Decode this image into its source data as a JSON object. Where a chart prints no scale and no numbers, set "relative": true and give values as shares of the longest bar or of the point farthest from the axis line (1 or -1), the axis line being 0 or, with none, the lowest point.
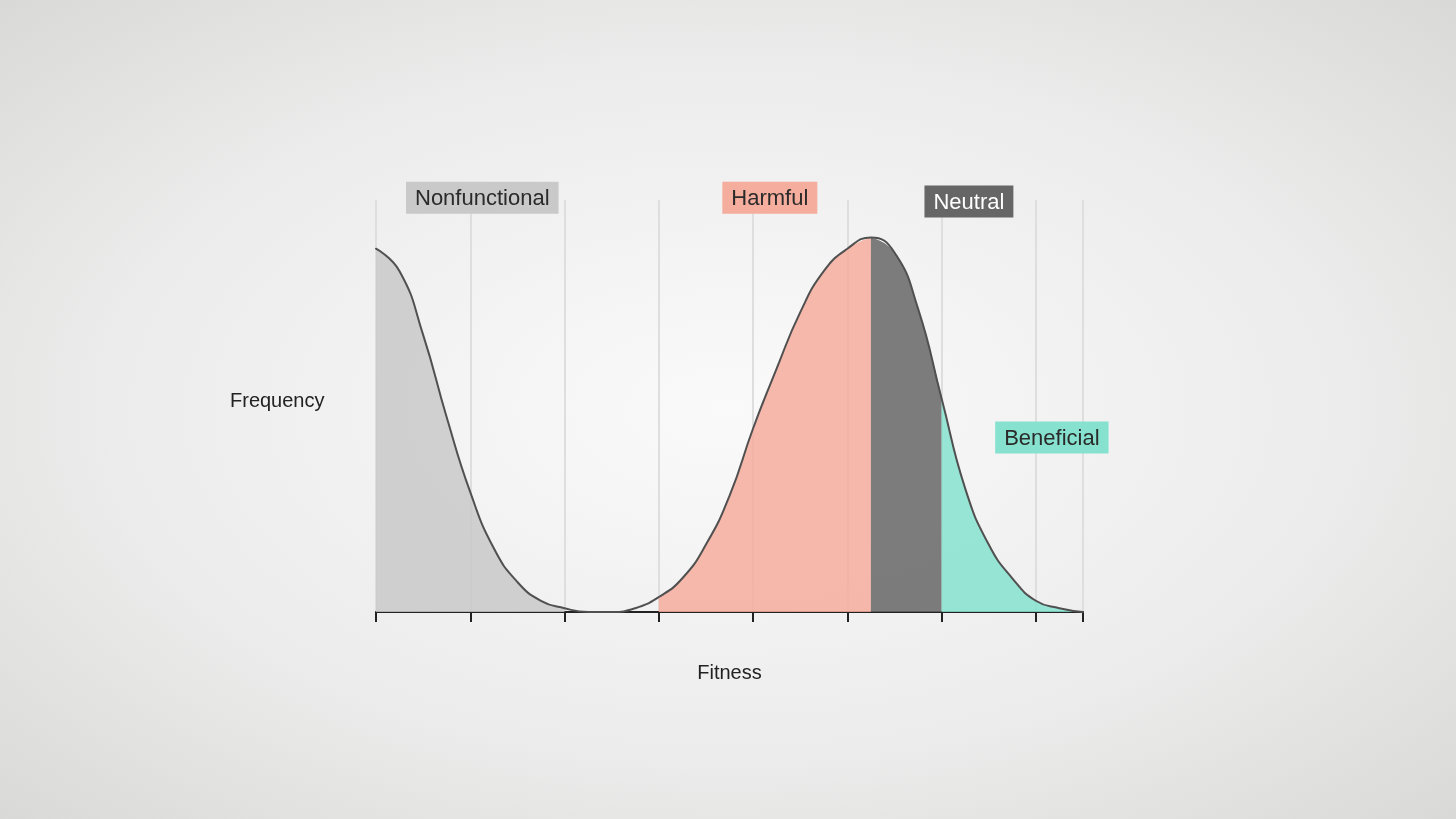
{
  "chart_data": {
    "type": "area",
    "relative": true,
    "xlabel": "Fitness",
    "ylabel": "Frequency",
    "grid": "x",
    "legend": false,
    "marker": "none",
    "line_style": "solid",
    "categories": [
      null,
      null,
      null,
      null,
      null,
      null,
      null,
      null,
      null,
      null,
      null,
      null,
      null,
      null,
      null,
      null,
      null,
      null,
      null,
      null,
      null,
      null,
      null,
      null,
      null,
      null,
      null,
      null,
      null,
      null,
      null
    ],
    "series": [
      {
        "name": "Nonfunctional",
        "color": "#c9c9c9",
        "values": [
          0.97,
          0.91,
          0.74,
          0.52,
          0.32,
          0.17,
          0.08,
          0.03,
          0.01,
          null,
          null,
          null,
          null,
          null,
          null,
          null,
          null,
          null,
          null,
          null,
          null,
          null,
          null,
          null,
          null,
          null,
          null,
          null,
          null,
          null,
          null
        ]
      },
      {
        "name": "Harmful",
        "color": "#f5ad9d",
        "values": [
          null,
          null,
          null,
          null,
          null,
          null,
          null,
          null,
          null,
          null,
          null,
          null,
          0.04,
          0.09,
          0.18,
          0.31,
          0.49,
          0.65,
          0.8,
          0.91,
          0.97,
          1,
          null,
          null,
          null,
          null,
          null,
          null,
          null,
          null,
          null
        ]
      },
      {
        "name": "Neutral",
        "color": "#666666",
        "values": [
          null,
          null,
          null,
          null,
          null,
          null,
          null,
          null,
          null,
          null,
          null,
          null,
          null,
          null,
          null,
          null,
          null,
          null,
          null,
          null,
          null,
          1,
          0.96,
          0.81,
          0.57,
          null,
          null,
          null,
          null,
          null,
          null
        ]
      },
      {
        "name": "Beneficial",
        "color": "#86e2cf",
        "values": [
          null,
          null,
          null,
          null,
          null,
          null,
          null,
          null,
          null,
          null,
          null,
          null,
          null,
          null,
          null,
          null,
          null,
          null,
          null,
          null,
          null,
          null,
          null,
          null,
          0.57,
          0.33,
          0.18,
          0.09,
          0.03,
          0.01,
          0
        ]
      },
      {
        "type": "line",
        "color": "#505050",
        "values": [
          0.97,
          0.91,
          0.74,
          0.52,
          0.32,
          0.17,
          0.08,
          0.03,
          0.01,
          0,
          0,
          0.01,
          0.04,
          0.09,
          0.18,
          0.31,
          0.49,
          0.65,
          0.8,
          0.91,
          0.97,
          1,
          0.96,
          0.81,
          0.57,
          0.33,
          0.18,
          0.09,
          0.03,
          0.01,
          0
        ]
      }
    ]
  }
}
